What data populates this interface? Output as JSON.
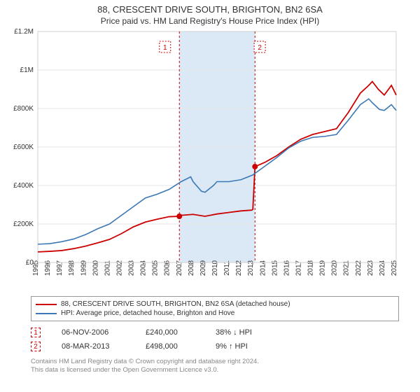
{
  "title": "88, CRESCENT DRIVE SOUTH, BRIGHTON, BN2 6SA",
  "subtitle": "Price paid vs. HM Land Registry's House Price Index (HPI)",
  "chart": {
    "type": "line",
    "background_color": "#ffffff",
    "plot_border_color": "#d0d0d0",
    "grid_color": "#e6e6e6",
    "x_years": [
      1995,
      1996,
      1997,
      1998,
      1999,
      2000,
      2001,
      2002,
      2003,
      2004,
      2005,
      2006,
      2007,
      2008,
      2009,
      2010,
      2011,
      2012,
      2013,
      2014,
      2015,
      2016,
      2017,
      2018,
      2019,
      2020,
      2021,
      2022,
      2023,
      2024,
      2025
    ],
    "ylim": [
      0,
      1200000
    ],
    "y_ticks": [
      0,
      200000,
      400000,
      600000,
      800000,
      1000000,
      1200000
    ],
    "y_tick_labels": [
      "£0",
      "£200K",
      "£400K",
      "£600K",
      "£800K",
      "£1M",
      "£1.2M"
    ],
    "band": {
      "from_year": 2006.85,
      "to_year": 2013.18,
      "fill": "#dbe9f6",
      "border": "#cc0000",
      "border_dash": "3,3"
    },
    "markers": [
      {
        "label": "1",
        "year": 2006.85,
        "value": 240000,
        "box_x_offset": -1.2
      },
      {
        "label": "2",
        "year": 2013.18,
        "value": 498000,
        "box_x_offset": 0.4
      }
    ],
    "marker_style": {
      "fill": "#cc0000",
      "radius": 4,
      "label_box_border": "#cc0000",
      "label_box_text": "#cc0000",
      "label_box_dash": "2,2"
    },
    "series": [
      {
        "name": "price_paid",
        "label": "88, CRESCENT DRIVE SOUTH, BRIGHTON, BN2 6SA (detached house)",
        "color": "#cc0000",
        "width": 1.8,
        "points": [
          [
            1995,
            55000
          ],
          [
            1996,
            58000
          ],
          [
            1997,
            62000
          ],
          [
            1998,
            72000
          ],
          [
            1999,
            85000
          ],
          [
            2000,
            102000
          ],
          [
            2001,
            120000
          ],
          [
            2002,
            150000
          ],
          [
            2003,
            185000
          ],
          [
            2004,
            210000
          ],
          [
            2005,
            225000
          ],
          [
            2006,
            238000
          ],
          [
            2006.85,
            240000
          ],
          [
            2007,
            245000
          ],
          [
            2008,
            250000
          ],
          [
            2009,
            240000
          ],
          [
            2010,
            252000
          ],
          [
            2011,
            260000
          ],
          [
            2012,
            268000
          ],
          [
            2012.9,
            272000
          ],
          [
            2013.0,
            276000
          ],
          [
            2013.18,
            498000
          ],
          [
            2014,
            520000
          ],
          [
            2015,
            555000
          ],
          [
            2016,
            600000
          ],
          [
            2017,
            640000
          ],
          [
            2018,
            665000
          ],
          [
            2019,
            680000
          ],
          [
            2020,
            695000
          ],
          [
            2021,
            780000
          ],
          [
            2022,
            880000
          ],
          [
            2022.7,
            920000
          ],
          [
            2023,
            940000
          ],
          [
            2023.5,
            900000
          ],
          [
            2024,
            870000
          ],
          [
            2024.6,
            920000
          ],
          [
            2025,
            870000
          ]
        ]
      },
      {
        "name": "hpi",
        "label": "HPI: Average price, detached house, Brighton and Hove",
        "color": "#3b78b5",
        "width": 1.6,
        "points": [
          [
            1995,
            95000
          ],
          [
            1996,
            98000
          ],
          [
            1997,
            108000
          ],
          [
            1998,
            122000
          ],
          [
            1999,
            145000
          ],
          [
            2000,
            175000
          ],
          [
            2001,
            200000
          ],
          [
            2002,
            245000
          ],
          [
            2003,
            290000
          ],
          [
            2004,
            335000
          ],
          [
            2005,
            355000
          ],
          [
            2006,
            380000
          ],
          [
            2007,
            420000
          ],
          [
            2007.8,
            445000
          ],
          [
            2008,
            420000
          ],
          [
            2008.7,
            370000
          ],
          [
            2009,
            365000
          ],
          [
            2009.7,
            400000
          ],
          [
            2010,
            420000
          ],
          [
            2011,
            420000
          ],
          [
            2012,
            430000
          ],
          [
            2013,
            455000
          ],
          [
            2014,
            500000
          ],
          [
            2015,
            545000
          ],
          [
            2016,
            595000
          ],
          [
            2017,
            630000
          ],
          [
            2018,
            650000
          ],
          [
            2019,
            655000
          ],
          [
            2020,
            665000
          ],
          [
            2021,
            740000
          ],
          [
            2022,
            820000
          ],
          [
            2022.7,
            850000
          ],
          [
            2023,
            830000
          ],
          [
            2023.6,
            795000
          ],
          [
            2024,
            790000
          ],
          [
            2024.6,
            820000
          ],
          [
            2025,
            790000
          ]
        ]
      }
    ]
  },
  "legend": {
    "items": [
      {
        "color": "#cc0000",
        "label": "88, CRESCENT DRIVE SOUTH, BRIGHTON, BN2 6SA (detached house)"
      },
      {
        "color": "#3b78b5",
        "label": "HPI: Average price, detached house, Brighton and Hove"
      }
    ]
  },
  "sales": [
    {
      "marker": "1",
      "date": "06-NOV-2006",
      "price": "£240,000",
      "delta": "38% ↓ HPI"
    },
    {
      "marker": "2",
      "date": "08-MAR-2013",
      "price": "£498,000",
      "delta": "9% ↑ HPI"
    }
  ],
  "footer_line1": "Contains HM Land Registry data © Crown copyright and database right 2024.",
  "footer_line2": "This data is licensed under the Open Government Licence v3.0."
}
